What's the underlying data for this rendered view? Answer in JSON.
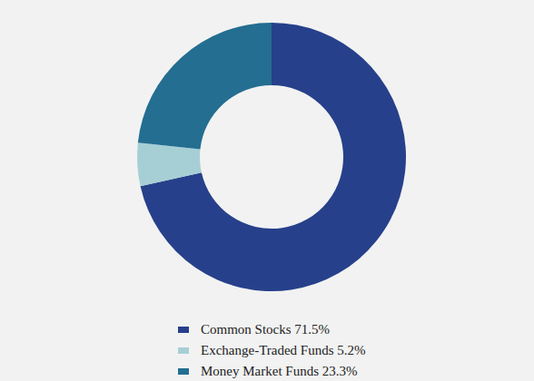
{
  "chart_data": {
    "type": "pie",
    "categories": [
      "Common Stocks",
      "Exchange-Traded Funds",
      "Money Market Funds"
    ],
    "values": [
      71.5,
      5.2,
      23.3
    ],
    "value_labels": [
      "71.5%",
      "5.2%",
      "23.3%"
    ],
    "colors": [
      "#27408b",
      "#a6cfd5",
      "#236e91"
    ],
    "legend": "bottom"
  }
}
